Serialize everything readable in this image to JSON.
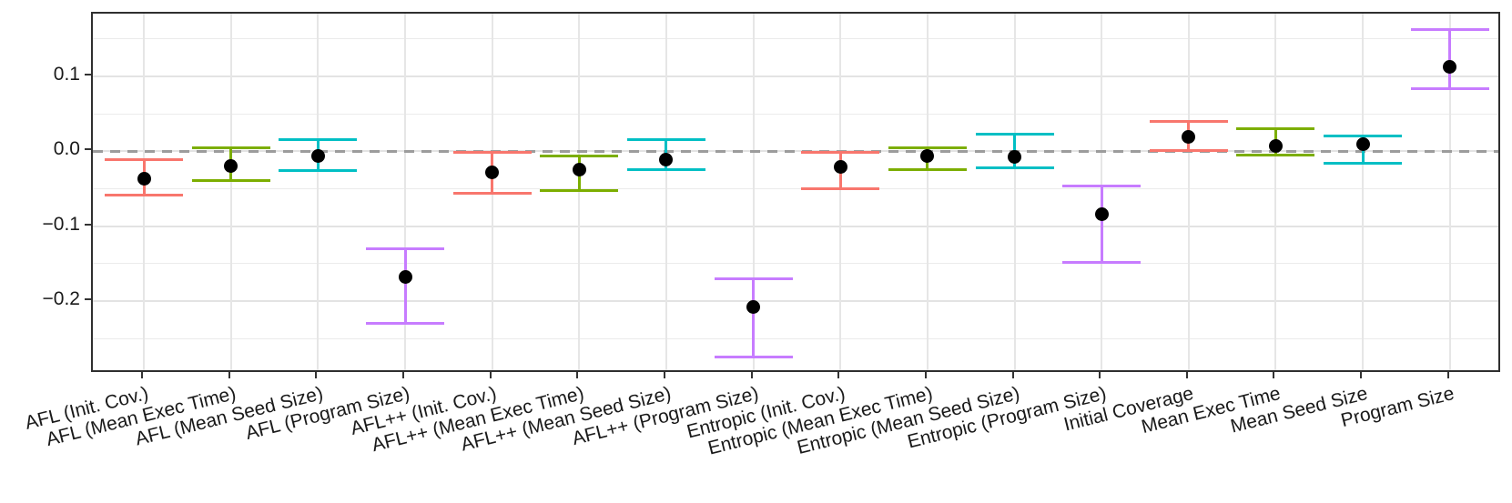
{
  "chart_data": {
    "type": "errorbar",
    "title": "",
    "xlabel": "",
    "ylabel": "",
    "legend": "none",
    "grid": "on",
    "y_axis": {
      "major_ticks": [
        {
          "label": "0.1",
          "value": 0.1
        },
        {
          "label": "0.0",
          "value": 0.0
        },
        {
          "label": "−0.1",
          "value": -0.1
        },
        {
          "label": "−0.2",
          "value": -0.2
        }
      ],
      "minor_tick_values": [
        0.15,
        0.05,
        -0.05,
        -0.15,
        -0.25
      ],
      "ylim": [
        -0.297,
        0.184
      ]
    },
    "reference_line": {
      "value": 0.0,
      "style": "dashed",
      "color": "#9c9c9c"
    },
    "palette": {
      "init_cov": "#F8766D",
      "mean_exec_time": "#7CAE00",
      "mean_seed_size": "#00BFC4",
      "program_size": "#C77CFF"
    },
    "point_color": "#000000",
    "x_tick_angle_deg": -14,
    "points": [
      {
        "label": "AFL (Init. Cov.)",
        "metric": "init_cov",
        "value": -0.037,
        "lower": -0.059,
        "upper": -0.011
      },
      {
        "label": "AFL (Mean Exec Time)",
        "metric": "mean_exec_time",
        "value": -0.02,
        "lower": -0.039,
        "upper": 0.005
      },
      {
        "label": "AFL (Mean Seed Size)",
        "metric": "mean_seed_size",
        "value": -0.006,
        "lower": -0.026,
        "upper": 0.015
      },
      {
        "label": "AFL (Program Size)",
        "metric": "program_size",
        "value": -0.168,
        "lower": -0.23,
        "upper": -0.13
      },
      {
        "label": "AFL++ (Init. Cov.)",
        "metric": "init_cov",
        "value": -0.028,
        "lower": -0.056,
        "upper": -0.002
      },
      {
        "label": "AFL++ (Mean Exec Time)",
        "metric": "mean_exec_time",
        "value": -0.024,
        "lower": -0.052,
        "upper": -0.006
      },
      {
        "label": "AFL++ (Mean Seed Size)",
        "metric": "mean_seed_size",
        "value": -0.011,
        "lower": -0.025,
        "upper": 0.015
      },
      {
        "label": "AFL++ (Program Size)",
        "metric": "program_size",
        "value": -0.208,
        "lower": -0.275,
        "upper": -0.17
      },
      {
        "label": "Entropic (Init. Cov.)",
        "metric": "init_cov",
        "value": -0.021,
        "lower": -0.05,
        "upper": -0.001
      },
      {
        "label": "Entropic (Mean Exec Time)",
        "metric": "mean_exec_time",
        "value": -0.006,
        "lower": -0.025,
        "upper": 0.005
      },
      {
        "label": "Entropic (Mean Seed Size)",
        "metric": "mean_seed_size",
        "value": -0.008,
        "lower": -0.022,
        "upper": 0.023
      },
      {
        "label": "Entropic (Program Size)",
        "metric": "program_size",
        "value": -0.084,
        "lower": -0.149,
        "upper": -0.047
      },
      {
        "label": "Initial Coverage",
        "metric": "init_cov",
        "value": 0.019,
        "lower": 0.001,
        "upper": 0.04
      },
      {
        "label": "Mean Exec Time",
        "metric": "mean_exec_time",
        "value": 0.007,
        "lower": -0.005,
        "upper": 0.03
      },
      {
        "label": "Mean Seed Size",
        "metric": "mean_seed_size",
        "value": 0.01,
        "lower": -0.016,
        "upper": 0.021
      },
      {
        "label": "Program Size",
        "metric": "program_size",
        "value": 0.113,
        "lower": 0.084,
        "upper": 0.163
      }
    ]
  }
}
